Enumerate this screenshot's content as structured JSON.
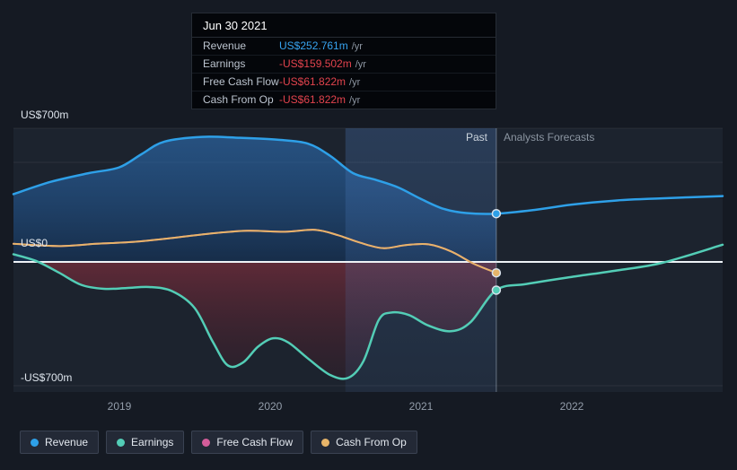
{
  "colors": {
    "background": "#151a23",
    "plot_background": "#1c232e",
    "zero_line": "#eef2f6",
    "negative_value": "#e2434d",
    "revenue_blue": "#2ea0e8"
  },
  "tooltip": {
    "date": "Jun 30 2021",
    "rows": [
      {
        "label": "Revenue",
        "value": "US$252.761m",
        "suffix": "/yr",
        "color": "#37a3ef"
      },
      {
        "label": "Earnings",
        "value": "-US$159.502m",
        "suffix": "/yr",
        "color": "#e2434d"
      },
      {
        "label": "Free Cash Flow",
        "value": "-US$61.822m",
        "suffix": "/yr",
        "color": "#e2434d"
      },
      {
        "label": "Cash From Op",
        "value": "-US$61.822m",
        "suffix": "/yr",
        "color": "#e2434d"
      }
    ]
  },
  "chart_data": {
    "type": "line",
    "x_unit": "year",
    "y_unit": "US$m",
    "xlim": [
      2018.3,
      2023.0
    ],
    "ylim": [
      -700,
      700
    ],
    "grid": true,
    "legend_position": "bottom",
    "present_year": 2021.5,
    "band_start_year": 2020.5,
    "sections": {
      "past": "Past",
      "forecast": "Analysts Forecasts"
    },
    "y_ticks": [
      {
        "value": 700,
        "label": "US$700m"
      },
      {
        "value": 0,
        "label": "US$0"
      },
      {
        "value": -700,
        "label": "-US$700m"
      }
    ],
    "x_ticks": [
      2019,
      2020,
      2021,
      2022
    ],
    "series": [
      {
        "name": "Revenue",
        "color": "#2ea0e8",
        "line_width": 2.5,
        "fill": "positive",
        "dot_at_present": true,
        "points": [
          [
            2018.3,
            355
          ],
          [
            2018.55,
            420
          ],
          [
            2018.8,
            465
          ],
          [
            2019.0,
            495
          ],
          [
            2019.15,
            565
          ],
          [
            2019.3,
            630
          ],
          [
            2019.55,
            655
          ],
          [
            2019.8,
            650
          ],
          [
            2020.05,
            640
          ],
          [
            2020.25,
            620
          ],
          [
            2020.4,
            555
          ],
          [
            2020.55,
            465
          ],
          [
            2020.7,
            430
          ],
          [
            2020.85,
            390
          ],
          [
            2021.0,
            330
          ],
          [
            2021.15,
            278
          ],
          [
            2021.3,
            256
          ],
          [
            2021.5,
            252.761
          ],
          [
            2021.75,
            272
          ],
          [
            2022.0,
            300
          ],
          [
            2022.3,
            322
          ],
          [
            2022.6,
            333
          ],
          [
            2023.0,
            345
          ]
        ]
      },
      {
        "name": "Earnings",
        "color": "#53cdb6",
        "line_width": 2.5,
        "fill": "negative",
        "dot_at_present": true,
        "points": [
          [
            2018.3,
            40
          ],
          [
            2018.45,
            5
          ],
          [
            2018.6,
            -60
          ],
          [
            2018.75,
            -130
          ],
          [
            2018.9,
            -152
          ],
          [
            2019.05,
            -148
          ],
          [
            2019.2,
            -142
          ],
          [
            2019.35,
            -165
          ],
          [
            2019.5,
            -260
          ],
          [
            2019.62,
            -450
          ],
          [
            2019.72,
            -585
          ],
          [
            2019.82,
            -570
          ],
          [
            2019.92,
            -480
          ],
          [
            2020.02,
            -432
          ],
          [
            2020.12,
            -455
          ],
          [
            2020.25,
            -545
          ],
          [
            2020.4,
            -640
          ],
          [
            2020.52,
            -655
          ],
          [
            2020.62,
            -560
          ],
          [
            2020.72,
            -330
          ],
          [
            2020.8,
            -287
          ],
          [
            2020.92,
            -300
          ],
          [
            2021.05,
            -360
          ],
          [
            2021.2,
            -392
          ],
          [
            2021.33,
            -340
          ],
          [
            2021.5,
            -159.502
          ],
          [
            2021.7,
            -125
          ],
          [
            2022.0,
            -85
          ],
          [
            2022.3,
            -48
          ],
          [
            2022.6,
            -5
          ],
          [
            2023.0,
            90
          ]
        ]
      },
      {
        "name": "Free Cash Flow",
        "color": "#d45d9a",
        "line_width": 2,
        "fill": null,
        "dot_at_present": false,
        "points": [
          [
            2018.3,
            95
          ],
          [
            2018.6,
            83
          ],
          [
            2018.85,
            95
          ],
          [
            2019.1,
            105
          ],
          [
            2019.35,
            125
          ],
          [
            2019.6,
            148
          ],
          [
            2019.85,
            163
          ],
          [
            2020.1,
            158
          ],
          [
            2020.3,
            168
          ],
          [
            2020.45,
            140
          ],
          [
            2020.6,
            100
          ],
          [
            2020.75,
            72
          ],
          [
            2020.9,
            88
          ],
          [
            2021.05,
            92
          ],
          [
            2021.2,
            55
          ],
          [
            2021.35,
            -10
          ],
          [
            2021.5,
            -61.822
          ]
        ]
      },
      {
        "name": "Cash From Op",
        "color": "#e7b469",
        "line_width": 2,
        "fill": null,
        "dot_at_present": true,
        "points": [
          [
            2018.3,
            95
          ],
          [
            2018.6,
            83
          ],
          [
            2018.85,
            95
          ],
          [
            2019.1,
            105
          ],
          [
            2019.35,
            125
          ],
          [
            2019.6,
            148
          ],
          [
            2019.85,
            163
          ],
          [
            2020.1,
            158
          ],
          [
            2020.3,
            168
          ],
          [
            2020.45,
            140
          ],
          [
            2020.6,
            100
          ],
          [
            2020.75,
            72
          ],
          [
            2020.9,
            88
          ],
          [
            2021.05,
            92
          ],
          [
            2021.2,
            55
          ],
          [
            2021.35,
            -10
          ],
          [
            2021.5,
            -61.822
          ]
        ]
      }
    ]
  }
}
